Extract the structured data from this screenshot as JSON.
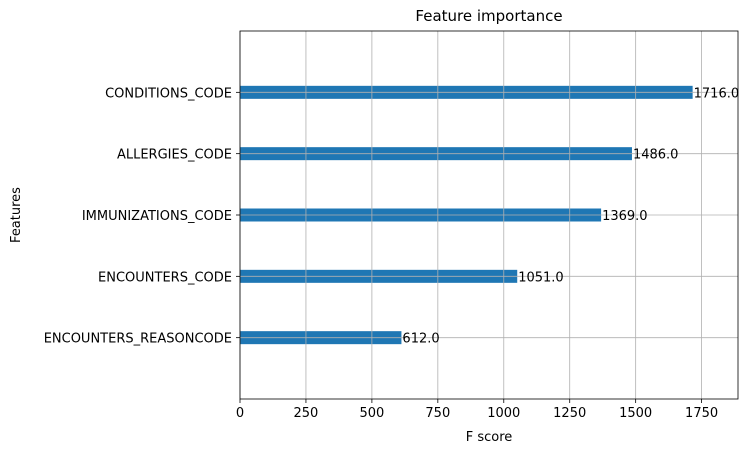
{
  "chart_data": {
    "type": "bar",
    "orientation": "horizontal",
    "title": "Feature importance",
    "xlabel": "F score",
    "ylabel": "Features",
    "categories": [
      "CONDITIONS_CODE",
      "ALLERGIES_CODE",
      "IMMUNIZATIONS_CODE",
      "ENCOUNTERS_CODE",
      "ENCOUNTERS_REASONCODE"
    ],
    "values": [
      1716,
      1486,
      1369,
      1051,
      612
    ],
    "value_labels": [
      "1716.0",
      "1486.0",
      "1369.0",
      "1051.0",
      "612.0"
    ],
    "xlim": [
      0,
      1888
    ],
    "xticks": [
      0,
      250,
      500,
      750,
      1000,
      1250,
      1500,
      1750
    ],
    "xtick_labels": [
      "0",
      "250",
      "500",
      "750",
      "1000",
      "1250",
      "1500",
      "1750"
    ],
    "grid": true,
    "bar_color": "#1f77b4"
  }
}
